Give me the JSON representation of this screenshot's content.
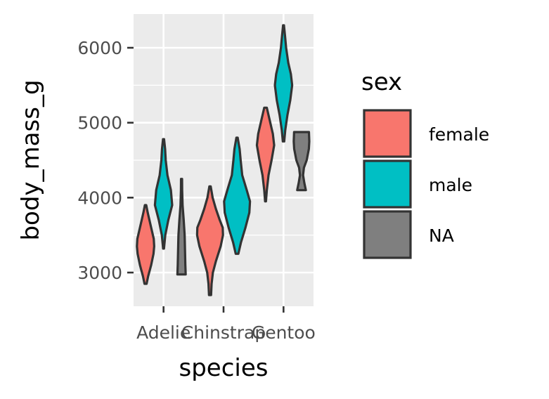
{
  "chart_data": {
    "type": "violin",
    "xlabel": "species",
    "ylabel": "body_mass_g",
    "categories": [
      "Adelie",
      "Chinstrap",
      "Gentoo"
    ],
    "ylim": [
      2550,
      6450
    ],
    "yticks": [
      3000,
      4000,
      5000,
      6000
    ],
    "ytick_labels": [
      "3000",
      "4000",
      "5000",
      "6000"
    ],
    "grid": true,
    "legend": {
      "title": "sex",
      "placement": "right",
      "entries": [
        {
          "label": "female",
          "color": "#F8766D"
        },
        {
          "label": "male",
          "color": "#00BFC4"
        },
        {
          "label": "NA",
          "color": "#7F7F7F"
        }
      ]
    },
    "series": [
      {
        "name": "female",
        "color": "#F8766D",
        "violins": [
          {
            "category": "Adelie",
            "min": 2850,
            "max": 3900,
            "profile": [
              [
                2850,
                0.12
              ],
              [
                2950,
                0.3
              ],
              [
                3100,
                0.65
              ],
              [
                3250,
                0.92
              ],
              [
                3350,
                1.0
              ],
              [
                3450,
                0.95
              ],
              [
                3550,
                0.75
              ],
              [
                3700,
                0.45
              ],
              [
                3800,
                0.25
              ],
              [
                3900,
                0.08
              ]
            ]
          },
          {
            "category": "Chinstrap",
            "min": 2700,
            "max": 4150,
            "profile": [
              [
                2700,
                0.08
              ],
              [
                2850,
                0.12
              ],
              [
                3000,
                0.22
              ],
              [
                3150,
                0.45
              ],
              [
                3350,
                0.82
              ],
              [
                3500,
                1.0
              ],
              [
                3600,
                0.98
              ],
              [
                3700,
                0.75
              ],
              [
                3850,
                0.45
              ],
              [
                4000,
                0.2
              ],
              [
                4150,
                0.05
              ]
            ]
          },
          {
            "category": "Gentoo",
            "min": 3950,
            "max": 5200,
            "profile": [
              [
                3950,
                0.05
              ],
              [
                4100,
                0.15
              ],
              [
                4300,
                0.35
              ],
              [
                4500,
                0.7
              ],
              [
                4700,
                1.0
              ],
              [
                4850,
                0.85
              ],
              [
                5000,
                0.55
              ],
              [
                5100,
                0.35
              ],
              [
                5200,
                0.15
              ]
            ]
          }
        ]
      },
      {
        "name": "male",
        "color": "#00BFC4",
        "violins": [
          {
            "category": "Adelie",
            "min": 3320,
            "max": 4780,
            "profile": [
              [
                3320,
                0.05
              ],
              [
                3500,
                0.2
              ],
              [
                3700,
                0.55
              ],
              [
                3900,
                1.0
              ],
              [
                4100,
                0.85
              ],
              [
                4300,
                0.45
              ],
              [
                4500,
                0.25
              ],
              [
                4650,
                0.18
              ],
              [
                4780,
                0.06
              ]
            ]
          },
          {
            "category": "Chinstrap",
            "min": 3250,
            "max": 4800,
            "profile": [
              [
                3250,
                0.1
              ],
              [
                3400,
                0.3
              ],
              [
                3600,
                0.65
              ],
              [
                3800,
                0.95
              ],
              [
                3950,
                1.0
              ],
              [
                4100,
                0.75
              ],
              [
                4300,
                0.4
              ],
              [
                4500,
                0.28
              ],
              [
                4650,
                0.2
              ],
              [
                4800,
                0.05
              ]
            ]
          },
          {
            "category": "Gentoo",
            "min": 4750,
            "max": 6300,
            "profile": [
              [
                4750,
                0.08
              ],
              [
                4900,
                0.2
              ],
              [
                5100,
                0.45
              ],
              [
                5300,
                0.78
              ],
              [
                5500,
                1.0
              ],
              [
                5650,
                0.85
              ],
              [
                5800,
                0.55
              ],
              [
                6000,
                0.3
              ],
              [
                6150,
                0.18
              ],
              [
                6300,
                0.05
              ]
            ]
          }
        ]
      },
      {
        "name": "NA",
        "color": "#7F7F7F",
        "violins": [
          {
            "category": "Adelie",
            "min": 2975,
            "max": 4250,
            "profile": [
              [
                2975,
                0.48
              ],
              [
                3100,
                0.44
              ],
              [
                3300,
                0.4
              ],
              [
                3500,
                0.36
              ],
              [
                3700,
                0.25
              ],
              [
                3900,
                0.12
              ],
              [
                4100,
                0.07
              ],
              [
                4250,
                0.06
              ]
            ]
          },
          {
            "category": "Gentoo",
            "min": 4100,
            "max": 4875,
            "profile": [
              [
                4100,
                0.5
              ],
              [
                4200,
                0.32
              ],
              [
                4300,
                0.18
              ],
              [
                4400,
                0.28
              ],
              [
                4500,
                0.6
              ],
              [
                4650,
                0.85
              ],
              [
                4750,
                0.9
              ],
              [
                4875,
                0.86
              ]
            ]
          }
        ]
      }
    ]
  }
}
